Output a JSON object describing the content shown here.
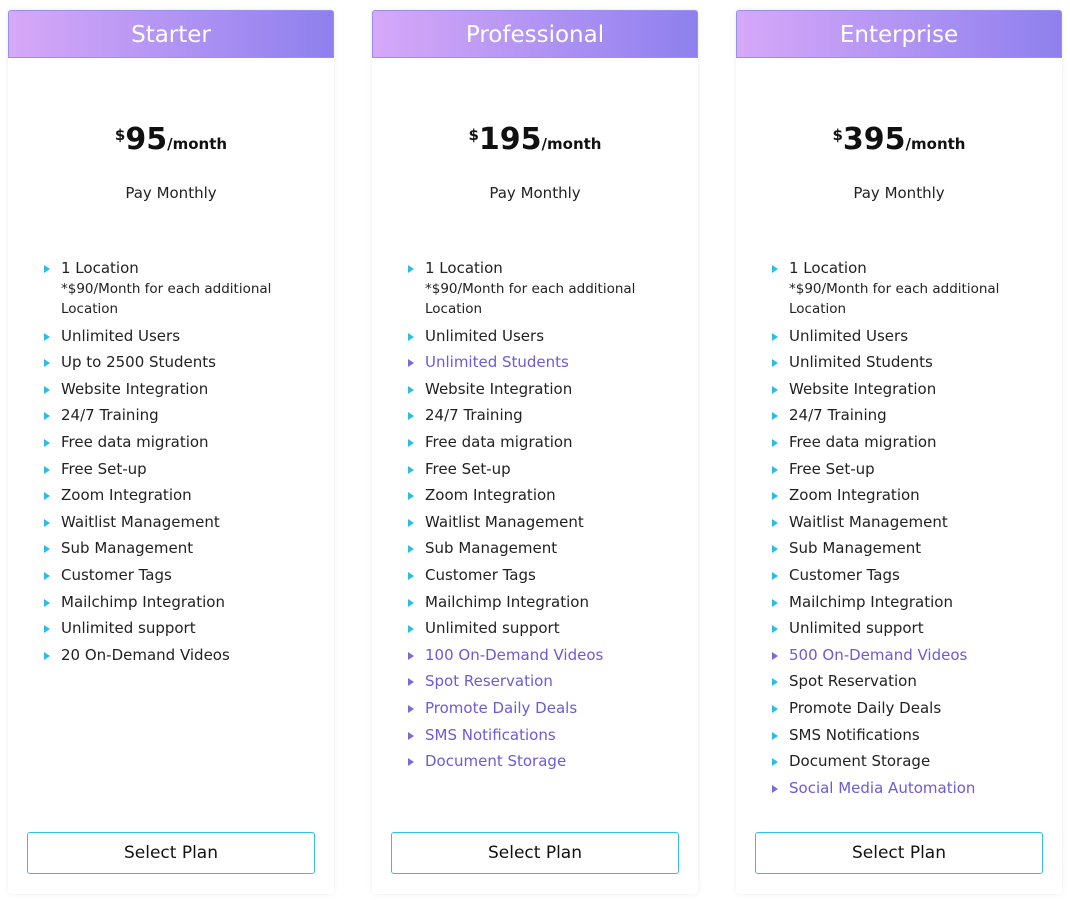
{
  "colors": {
    "header_gradient": [
      "#d6a8f8",
      "#8e80ee"
    ],
    "bullet": "#2bbde6",
    "highlight": "#6c5bd6",
    "button_border": "#32c0e6"
  },
  "plans": [
    {
      "name": "Starter",
      "currency": "$",
      "amount": "95",
      "period": "/month",
      "billing": "Pay Monthly",
      "button": "Select Plan",
      "features": [
        {
          "text": "1 Location",
          "note": "*$90/Month for each additional Location",
          "highlight": false
        },
        {
          "text": "Unlimited Users",
          "highlight": false
        },
        {
          "text": "Up to 2500 Students",
          "highlight": false
        },
        {
          "text": "Website Integration",
          "highlight": false
        },
        {
          "text": "24/7 Training",
          "highlight": false
        },
        {
          "text": "Free data migration",
          "highlight": false
        },
        {
          "text": "Free Set-up",
          "highlight": false
        },
        {
          "text": "Zoom Integration",
          "highlight": false
        },
        {
          "text": "Waitlist Management",
          "highlight": false
        },
        {
          "text": "Sub Management",
          "highlight": false
        },
        {
          "text": "Customer Tags",
          "highlight": false
        },
        {
          "text": "Mailchimp Integration",
          "highlight": false
        },
        {
          "text": "Unlimited support",
          "highlight": false
        },
        {
          "text": "20 On-Demand Videos",
          "highlight": false
        }
      ]
    },
    {
      "name": "Professional",
      "currency": "$",
      "amount": "195",
      "period": "/month",
      "billing": "Pay Monthly",
      "button": "Select Plan",
      "features": [
        {
          "text": "1 Location",
          "note": "*$90/Month for each additional Location",
          "highlight": false
        },
        {
          "text": "Unlimited Users",
          "highlight": false
        },
        {
          "text": "Unlimited Students",
          "highlight": true
        },
        {
          "text": "Website Integration",
          "highlight": false
        },
        {
          "text": "24/7 Training",
          "highlight": false
        },
        {
          "text": "Free data migration",
          "highlight": false
        },
        {
          "text": "Free Set-up",
          "highlight": false
        },
        {
          "text": "Zoom Integration",
          "highlight": false
        },
        {
          "text": "Waitlist Management",
          "highlight": false
        },
        {
          "text": "Sub Management",
          "highlight": false
        },
        {
          "text": "Customer Tags",
          "highlight": false
        },
        {
          "text": "Mailchimp Integration",
          "highlight": false
        },
        {
          "text": "Unlimited support",
          "highlight": false
        },
        {
          "text": "100 On-Demand Videos",
          "highlight": true
        },
        {
          "text": "Spot Reservation",
          "highlight": true
        },
        {
          "text": "Promote Daily Deals",
          "highlight": true
        },
        {
          "text": "SMS Notifications",
          "highlight": true
        },
        {
          "text": "Document Storage",
          "highlight": true
        }
      ]
    },
    {
      "name": "Enterprise",
      "currency": "$",
      "amount": "395",
      "period": "/month",
      "billing": "Pay Monthly",
      "button": "Select Plan",
      "features": [
        {
          "text": "1 Location",
          "note": "*$90/Month for each additional Location",
          "highlight": false
        },
        {
          "text": "Unlimited Users",
          "highlight": false
        },
        {
          "text": "Unlimited Students",
          "highlight": false
        },
        {
          "text": "Website Integration",
          "highlight": false
        },
        {
          "text": "24/7 Training",
          "highlight": false
        },
        {
          "text": "Free data migration",
          "highlight": false
        },
        {
          "text": "Free Set-up",
          "highlight": false
        },
        {
          "text": "Zoom Integration",
          "highlight": false
        },
        {
          "text": "Waitlist Management",
          "highlight": false
        },
        {
          "text": "Sub Management",
          "highlight": false
        },
        {
          "text": "Customer Tags",
          "highlight": false
        },
        {
          "text": "Mailchimp Integration",
          "highlight": false
        },
        {
          "text": "Unlimited support",
          "highlight": false
        },
        {
          "text": "500 On-Demand Videos",
          "highlight": true
        },
        {
          "text": "Spot Reservation",
          "highlight": false
        },
        {
          "text": "Promote Daily Deals",
          "highlight": false
        },
        {
          "text": "SMS Notifications",
          "highlight": false
        },
        {
          "text": "Document Storage",
          "highlight": false
        },
        {
          "text": "Social Media Automation",
          "highlight": true
        }
      ]
    }
  ]
}
